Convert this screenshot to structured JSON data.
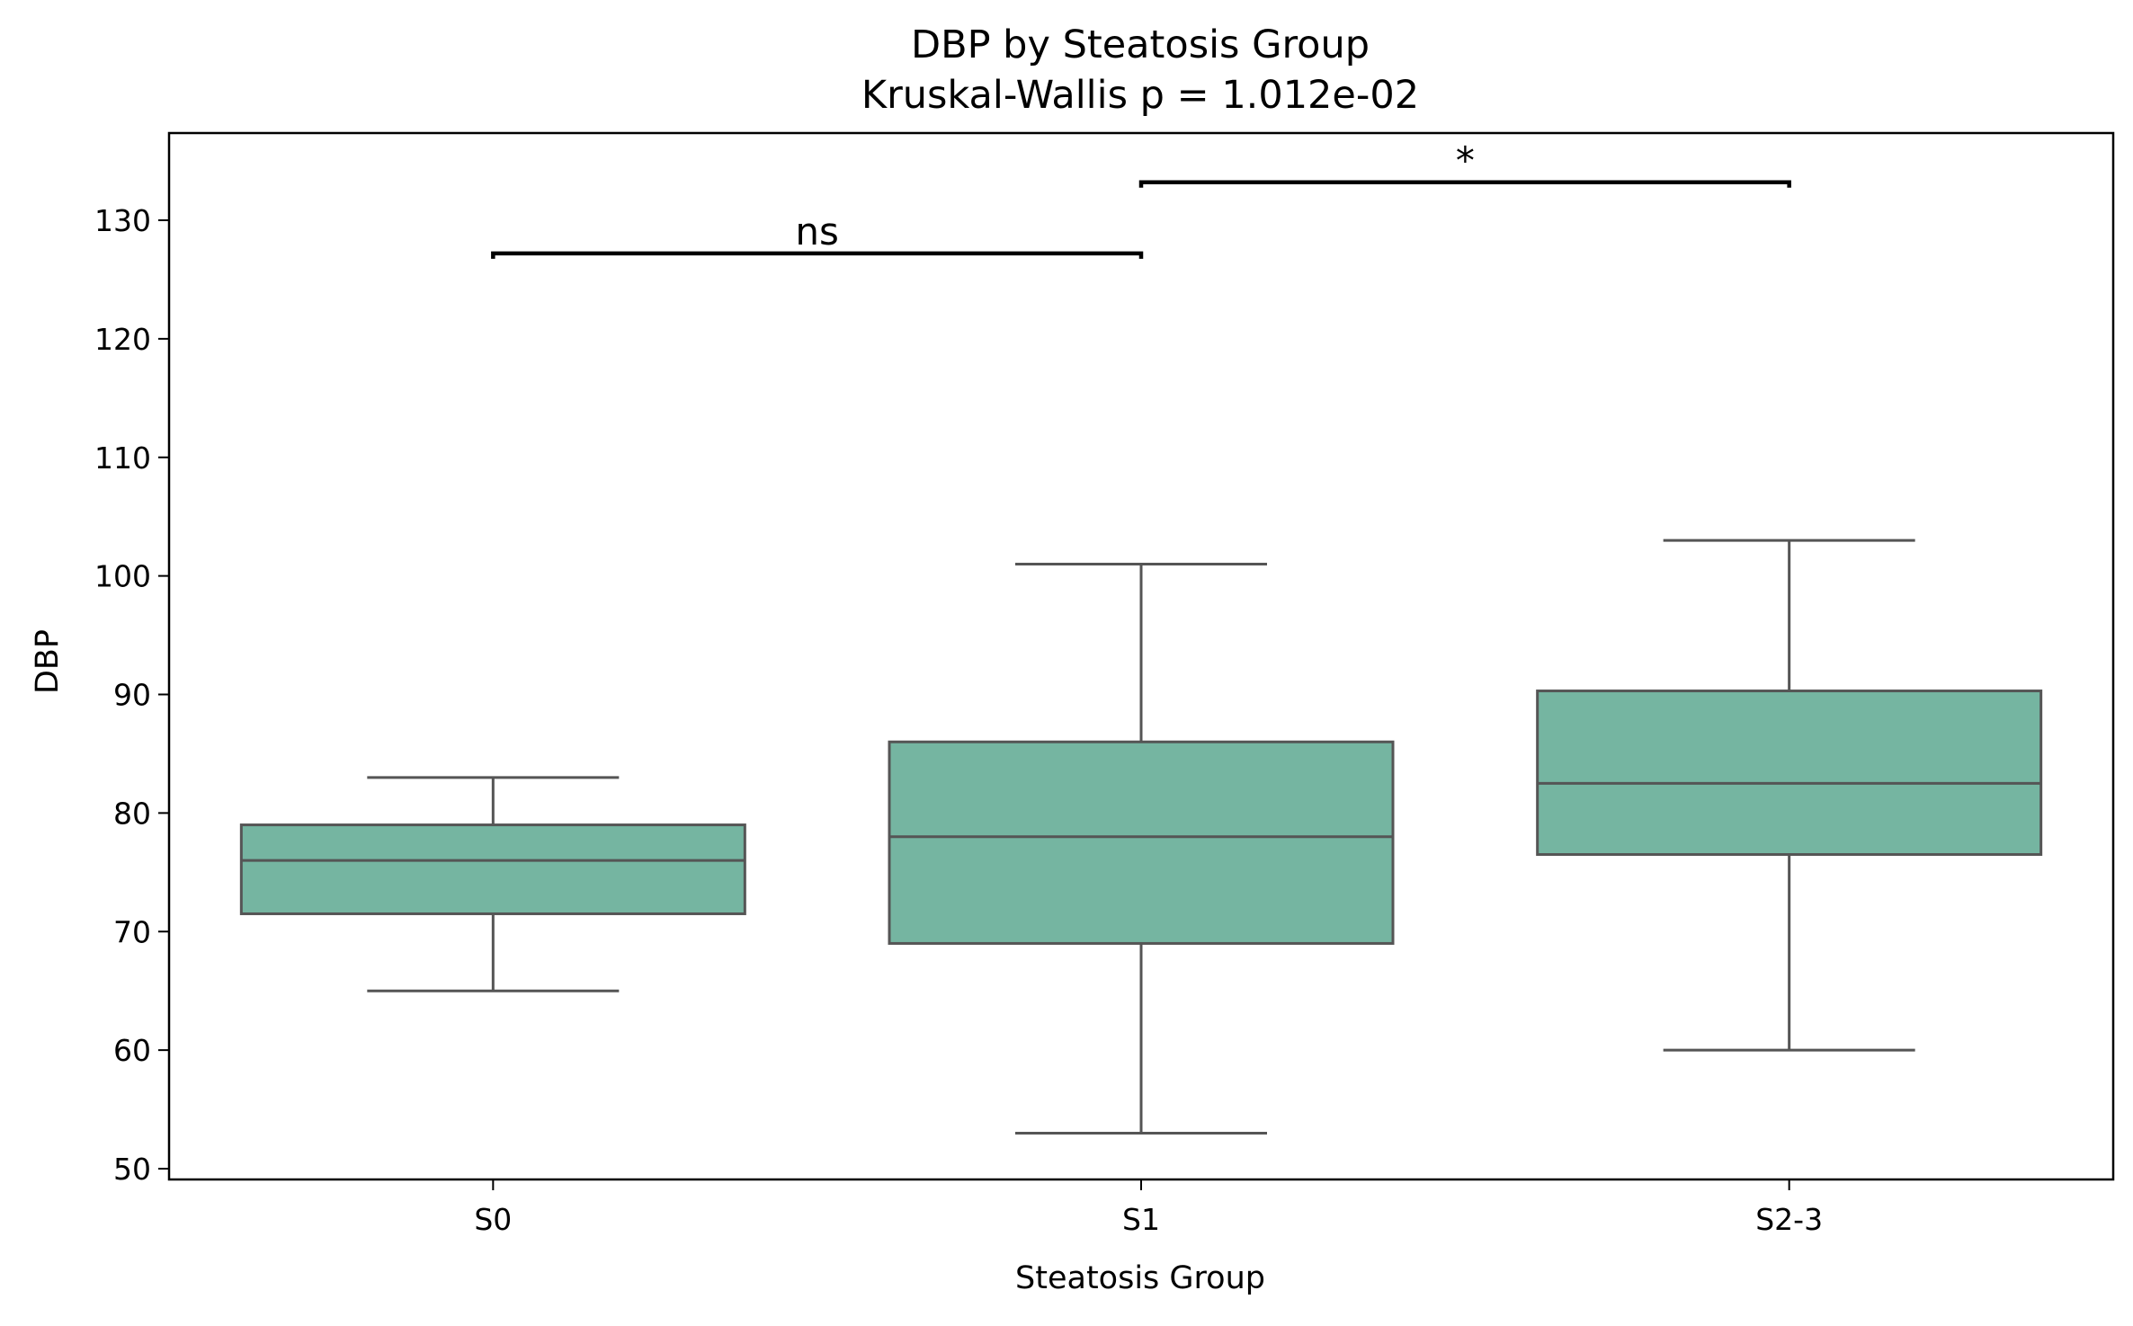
{
  "chart_data": {
    "type": "box",
    "title": "DBP by Steatosis Group",
    "subtitle": "Kruskal-Wallis p = 1.012e-02",
    "xlabel": "Steatosis Group",
    "ylabel": "DBP",
    "ylim": [
      49,
      137.5
    ],
    "yticks": [
      50,
      60,
      70,
      80,
      90,
      100,
      110,
      120,
      130
    ],
    "grid": false,
    "box_color": "#75b5a1",
    "line_color": "#555555",
    "categories": [
      "S0",
      "S1",
      "S2-3"
    ],
    "boxes": [
      {
        "category": "S0",
        "whisker_low": 65,
        "q1": 71.5,
        "median": 76,
        "q3": 79,
        "whisker_high": 83
      },
      {
        "category": "S1",
        "whisker_low": 53,
        "q1": 69,
        "median": 78,
        "q3": 86,
        "whisker_high": 101
      },
      {
        "category": "S2-3",
        "whisker_low": 60,
        "q1": 76.5,
        "median": 82.5,
        "q3": 90.3,
        "whisker_high": 103
      }
    ],
    "annotations": [
      {
        "from": "S0",
        "to": "S1",
        "y": 127.2,
        "text": "ns"
      },
      {
        "from": "S1",
        "to": "S2-3",
        "y": 133.2,
        "text": "*"
      }
    ]
  }
}
